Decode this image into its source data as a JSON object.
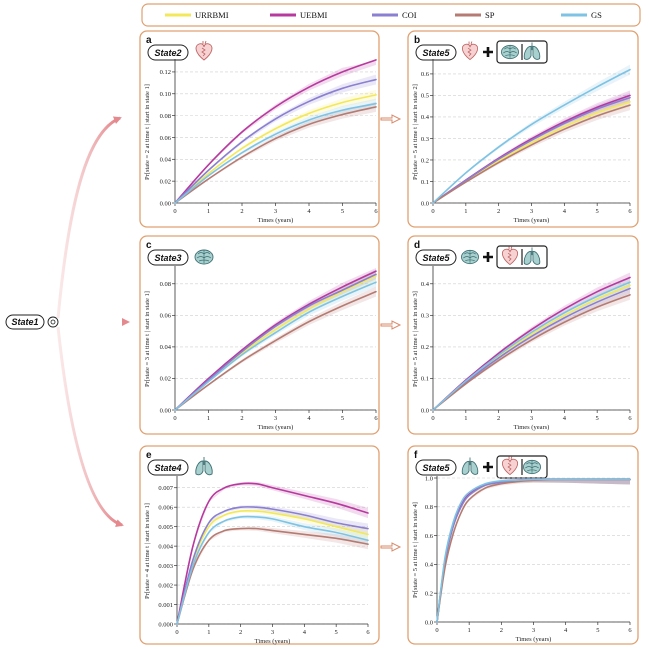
{
  "legend": [
    {
      "name": "URRBMI",
      "color": "#f2e85a"
    },
    {
      "name": "UEBMI",
      "color": "#b8399e"
    },
    {
      "name": "COI",
      "color": "#8a7fd0"
    },
    {
      "name": "SP",
      "color": "#b57b72"
    },
    {
      "name": "GS",
      "color": "#7ec3e3"
    }
  ],
  "root_label": "State1",
  "state_icons": {
    "State2": "heart-icon",
    "State3": "brain-icon",
    "State4": "lungs-icon"
  },
  "chart_data": [
    {
      "panel": "a",
      "type": "line",
      "label": "State2",
      "xlabel": "Times (years)",
      "ylabel": "Pr[state = 2 at time t | start in state 1]",
      "xlim": [
        0,
        6
      ],
      "ylim": [
        0,
        0.13
      ],
      "xticks": [
        "0",
        "1",
        "2",
        "3",
        "4",
        "5",
        "6"
      ],
      "yticks": [
        "0.00",
        "0.02",
        "0.04",
        "0.06",
        "0.08",
        "0.10",
        "0.12"
      ],
      "x": [
        0,
        1,
        2,
        3,
        4,
        5,
        6
      ],
      "series": [
        {
          "name": "URRBMI",
          "values": [
            0,
            0.027,
            0.05,
            0.068,
            0.082,
            0.092,
            0.099
          ]
        },
        {
          "name": "UEBMI",
          "values": [
            0,
            0.035,
            0.065,
            0.088,
            0.106,
            0.12,
            0.131
          ]
        },
        {
          "name": "COI",
          "values": [
            0,
            0.03,
            0.056,
            0.077,
            0.093,
            0.105,
            0.113
          ]
        },
        {
          "name": "SP",
          "values": [
            0,
            0.022,
            0.042,
            0.059,
            0.072,
            0.081,
            0.088
          ]
        },
        {
          "name": "GS",
          "values": [
            0,
            0.025,
            0.046,
            0.063,
            0.076,
            0.085,
            0.091
          ]
        }
      ]
    },
    {
      "panel": "b",
      "type": "line",
      "label": "State5",
      "xlabel": "Times (years)",
      "ylabel": "Pr[state = 5 at time t | start in state 2]",
      "xlim": [
        0,
        6
      ],
      "ylim": [
        0,
        0.66
      ],
      "xticks": [
        "0",
        "1",
        "2",
        "3",
        "4",
        "5",
        "6"
      ],
      "yticks": [
        "0.0",
        "0.1",
        "0.2",
        "0.3",
        "0.4",
        "0.5",
        "0.6"
      ],
      "x": [
        0,
        1,
        2,
        3,
        4,
        5,
        6
      ],
      "series": [
        {
          "name": "URRBMI",
          "values": [
            0,
            0.1,
            0.195,
            0.28,
            0.355,
            0.42,
            0.47
          ]
        },
        {
          "name": "UEBMI",
          "values": [
            0,
            0.107,
            0.208,
            0.298,
            0.378,
            0.445,
            0.5
          ]
        },
        {
          "name": "COI",
          "values": [
            0,
            0.105,
            0.204,
            0.292,
            0.37,
            0.437,
            0.49
          ]
        },
        {
          "name": "SP",
          "values": [
            0,
            0.097,
            0.188,
            0.27,
            0.343,
            0.405,
            0.455
          ]
        },
        {
          "name": "GS",
          "values": [
            0,
            0.14,
            0.26,
            0.365,
            0.455,
            0.54,
            0.62
          ]
        }
      ]
    },
    {
      "panel": "c",
      "type": "line",
      "label": "State3",
      "xlabel": "Times (years)",
      "ylabel": "Pr[state = 3 at time t | start in state 1]",
      "xlim": [
        0,
        6
      ],
      "ylim": [
        0,
        0.09
      ],
      "xticks": [
        "0",
        "1",
        "2",
        "3",
        "4",
        "5",
        "6"
      ],
      "yticks": [
        "0.00",
        "0.02",
        "0.04",
        "0.06",
        "0.08"
      ],
      "x": [
        0,
        1,
        2,
        3,
        4,
        5,
        6
      ],
      "series": [
        {
          "name": "URRBMI",
          "values": [
            0,
            0.019,
            0.036,
            0.051,
            0.064,
            0.075,
            0.085
          ]
        },
        {
          "name": "UEBMI",
          "values": [
            0,
            0.02,
            0.038,
            0.054,
            0.067,
            0.078,
            0.088
          ]
        },
        {
          "name": "COI",
          "values": [
            0,
            0.019,
            0.037,
            0.053,
            0.066,
            0.076,
            0.086
          ]
        },
        {
          "name": "SP",
          "values": [
            0,
            0.016,
            0.031,
            0.044,
            0.056,
            0.066,
            0.075
          ]
        },
        {
          "name": "GS",
          "values": [
            0,
            0.018,
            0.035,
            0.049,
            0.062,
            0.072,
            0.081
          ]
        }
      ]
    },
    {
      "panel": "d",
      "type": "line",
      "label": "State5",
      "xlabel": "Times (years)",
      "ylabel": "Pr[state = 5 at time t | start in state 3]",
      "xlim": [
        0,
        6
      ],
      "ylim": [
        0,
        0.45
      ],
      "xticks": [
        "0",
        "1",
        "2",
        "3",
        "4",
        "5",
        "6"
      ],
      "yticks": [
        "0.0",
        "0.1",
        "0.2",
        "0.3",
        "0.4"
      ],
      "x": [
        0,
        1,
        2,
        3,
        4,
        5,
        6
      ],
      "series": [
        {
          "name": "URRBMI",
          "values": [
            0,
            0.09,
            0.17,
            0.24,
            0.3,
            0.352,
            0.395
          ]
        },
        {
          "name": "UEBMI",
          "values": [
            0,
            0.095,
            0.18,
            0.255,
            0.32,
            0.375,
            0.42
          ]
        },
        {
          "name": "COI",
          "values": [
            0,
            0.088,
            0.165,
            0.233,
            0.292,
            0.342,
            0.385
          ]
        },
        {
          "name": "SP",
          "values": [
            0,
            0.083,
            0.157,
            0.222,
            0.278,
            0.326,
            0.365
          ]
        },
        {
          "name": "GS",
          "values": [
            0,
            0.092,
            0.174,
            0.246,
            0.308,
            0.36,
            0.405
          ]
        }
      ]
    },
    {
      "panel": "e",
      "type": "line",
      "label": "State4",
      "xlabel": "Times (years)",
      "ylabel": "Pr[state = 4 at time t | start in state 1]",
      "xlim": [
        0,
        6
      ],
      "ylim": [
        0,
        0.0075
      ],
      "xticks": [
        "0",
        "1",
        "2",
        "3",
        "4",
        "5",
        "6"
      ],
      "yticks": [
        "0.000",
        "0.001",
        "0.002",
        "0.003",
        "0.004",
        "0.005",
        "0.006",
        "0.007"
      ],
      "x": [
        0,
        0.5,
        1,
        1.5,
        2,
        2.5,
        3,
        4,
        5,
        6
      ],
      "series": [
        {
          "name": "URRBMI",
          "values": [
            0,
            0.0032,
            0.005,
            0.0056,
            0.0058,
            0.0058,
            0.0057,
            0.0054,
            0.005,
            0.0046
          ]
        },
        {
          "name": "UEBMI",
          "values": [
            0,
            0.004,
            0.0063,
            0.007,
            0.0072,
            0.0072,
            0.007,
            0.0066,
            0.0062,
            0.0057
          ]
        },
        {
          "name": "COI",
          "values": [
            0,
            0.0033,
            0.0052,
            0.0058,
            0.006,
            0.006,
            0.0059,
            0.0056,
            0.0052,
            0.0049
          ]
        },
        {
          "name": "SP",
          "values": [
            0,
            0.0028,
            0.0043,
            0.0048,
            0.0049,
            0.0049,
            0.0048,
            0.0046,
            0.0044,
            0.0041
          ]
        },
        {
          "name": "GS",
          "values": [
            0,
            0.003,
            0.0047,
            0.0053,
            0.0055,
            0.0055,
            0.0054,
            0.005,
            0.0047,
            0.0043
          ]
        }
      ]
    },
    {
      "panel": "f",
      "type": "line",
      "label": "State5",
      "xlabel": "Times (years)",
      "ylabel": "Pr[state = 5 at time t | start in state 4]",
      "xlim": [
        0,
        6
      ],
      "ylim": [
        0,
        1.0
      ],
      "xticks": [
        "0",
        "1",
        "2",
        "3",
        "4",
        "5",
        "6"
      ],
      "yticks": [
        "0.0",
        "0.2",
        "0.4",
        "0.6",
        "0.8",
        "1.0"
      ],
      "x": [
        0,
        0.25,
        0.5,
        0.75,
        1,
        1.5,
        2,
        2.5,
        3,
        4,
        5,
        6
      ],
      "series": [
        {
          "name": "URRBMI",
          "values": [
            0,
            0.42,
            0.66,
            0.8,
            0.88,
            0.95,
            0.97,
            0.98,
            0.985,
            0.99,
            0.99,
            0.99
          ]
        },
        {
          "name": "UEBMI",
          "values": [
            0,
            0.43,
            0.67,
            0.81,
            0.89,
            0.955,
            0.975,
            0.985,
            0.99,
            0.99,
            0.99,
            0.99
          ]
        },
        {
          "name": "COI",
          "values": [
            0,
            0.42,
            0.66,
            0.8,
            0.88,
            0.95,
            0.97,
            0.98,
            0.985,
            0.99,
            0.99,
            0.99
          ]
        },
        {
          "name": "SP",
          "values": [
            0,
            0.38,
            0.61,
            0.76,
            0.85,
            0.93,
            0.96,
            0.975,
            0.985,
            0.99,
            0.99,
            0.99
          ]
        },
        {
          "name": "GS",
          "values": [
            0,
            0.45,
            0.69,
            0.83,
            0.9,
            0.96,
            0.98,
            0.985,
            0.99,
            0.99,
            0.99,
            0.99
          ]
        }
      ]
    }
  ]
}
